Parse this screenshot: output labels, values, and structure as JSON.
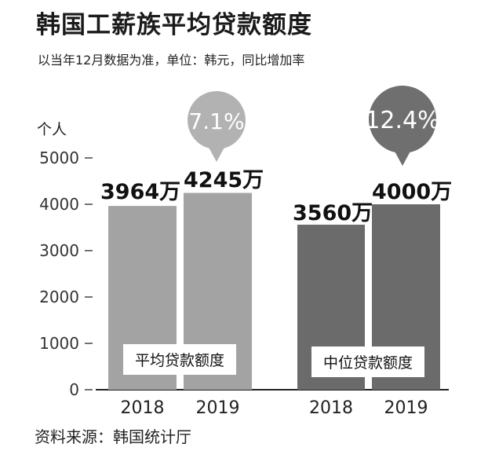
{
  "title": "韩国工薪族平均贷款额度",
  "subtitle": "以当年12月数据为准，单位：韩元，同比增加率",
  "source": "资料来源：韩国统计厅",
  "colors": {
    "average": "#a3a3a3",
    "median": "#6b6b6b",
    "bubble_light": "#b2b2b2",
    "bubble_dark": "#6f6f6f"
  },
  "chart_data": {
    "type": "bar",
    "ylabel": "个人",
    "ylim": [
      0,
      5000
    ],
    "yticks": [
      "0",
      "1000",
      "2000",
      "3000",
      "4000",
      "5000"
    ],
    "grid": false,
    "groups": [
      {
        "name": "平均贷款额度",
        "categories": [
          "2018",
          "2019"
        ],
        "values": [
          3964,
          4245
        ],
        "labels": [
          "3964万",
          "4245万"
        ],
        "growth": "7.1%"
      },
      {
        "name": "中位贷款额度",
        "categories": [
          "2018",
          "2019"
        ],
        "values": [
          3560,
          4000
        ],
        "labels": [
          "3560万",
          "4000万"
        ],
        "growth": "12.4%"
      }
    ]
  }
}
